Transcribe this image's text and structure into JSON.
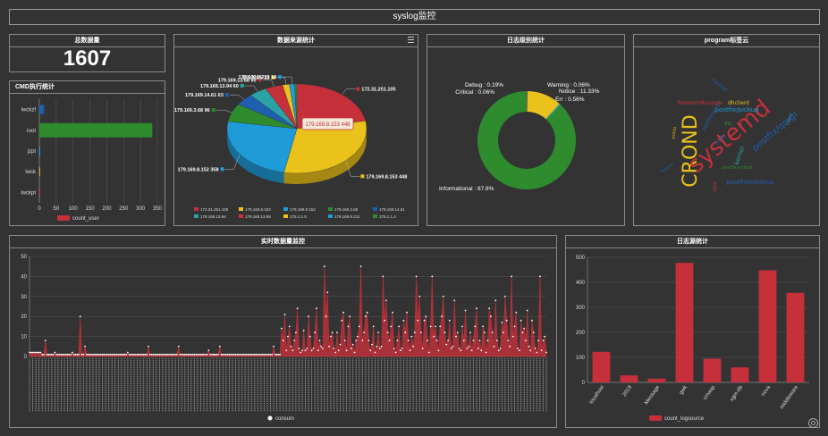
{
  "header": {
    "title": "syslog监控"
  },
  "total": {
    "title": "总数据量",
    "value": "1607"
  },
  "cmd": {
    "title": "CMD执行统计",
    "chart_data": {
      "type": "bar",
      "orientation": "horizontal",
      "categories": [
        "lwckzf",
        "root",
        "jzpt",
        "lwck",
        "lwckpt"
      ],
      "series": [
        {
          "name": "count_user",
          "values": [
            14,
            335,
            2,
            2,
            1
          ]
        }
      ],
      "xlim": [
        0,
        350
      ],
      "xticks": [
        "0",
        "50",
        "100",
        "150",
        "200",
        "250",
        "300",
        "350"
      ],
      "colors": [
        "#1f5fb0",
        "#2e8b2e",
        "#1f9cd8",
        "#d4a92a",
        "#c5303a"
      ],
      "legend_color": "#c5303a"
    }
  },
  "source": {
    "title": "数据来源统计",
    "chart_data": {
      "type": "pie",
      "slices": [
        {
          "name": "172.31.251.105",
          "value": 324,
          "color": "#c5303a",
          "label": "172.31.251.105"
        },
        {
          "name": "179.169.8.153",
          "value": 448,
          "color": "#eac21b",
          "label": "179.169.8.153 448"
        },
        {
          "name": "179.169.8.152",
          "value": 358,
          "color": "#1f9cd8",
          "label": "179.169.8.152 358"
        },
        {
          "name": "179.169.3.68",
          "value": 96,
          "color": "#2e8b2e",
          "label": "179.169.3.68 96"
        },
        {
          "name": "179.169.14.61",
          "value": 63,
          "color": "#1f5fb0",
          "label": "179.169.14.61 63"
        },
        {
          "name": "179.169.13.94",
          "value": 60,
          "color": "#2aa3a6",
          "label": "179.169.13.94 60"
        },
        {
          "name": "179.169.13.68",
          "value": 60,
          "color": "#c5303a",
          "label": "179.169.13.68 60"
        },
        {
          "name": "175.1.1.5",
          "value": 23,
          "color": "#eac21b",
          "label": "175.1.1.5 23"
        },
        {
          "name": "179.169.8.211",
          "value": 18,
          "color": "#1f9cd8",
          "label": "179.169.8.211 18"
        },
        {
          "name": "175.1.1.4",
          "value": 7,
          "color": "#2e8b2e",
          "label": ""
        }
      ],
      "tooltip": "179.169.8.153 448"
    }
  },
  "level": {
    "title": "日志级别统计",
    "chart_data": {
      "type": "pie",
      "donut": true,
      "slices": [
        {
          "name": "Debug",
          "value": 0.19,
          "color": "#c5303a",
          "label": "Debug : 0.19%"
        },
        {
          "name": "Critical",
          "value": 0.06,
          "color": "#1f5fb0",
          "label": "Critical : 0.06%"
        },
        {
          "name": "Warning",
          "value": 0.06,
          "color": "#1f9cd8",
          "label": "Warning : 0.06%"
        },
        {
          "name": "Notice",
          "value": 11.33,
          "color": "#eac21b",
          "label": "Notice : 11.33%"
        },
        {
          "name": "Err",
          "value": 0.56,
          "color": "#2aa3a6",
          "label": "Err : 0.56%"
        },
        {
          "name": "Informational",
          "value": 87.8,
          "color": "#2e8b2e",
          "label": "Informational : 87.8%"
        }
      ]
    }
  },
  "cloud": {
    "title": "program标签云",
    "words": [
      {
        "text": "CROND",
        "color": "#eac21b"
      },
      {
        "text": "systemd",
        "color": "#c5303a"
      },
      {
        "text": "postfix/qmgr",
        "color": "#1f5fb0"
      },
      {
        "text": "postfix/pickup",
        "color": "#1f9cd8"
      },
      {
        "text": "postfix/cleanup",
        "color": "#1f5fb0"
      },
      {
        "text": "dhclient",
        "color": "#eac21b"
      },
      {
        "text": "kernel",
        "color": "#2aa3a6"
      },
      {
        "text": "su",
        "color": "#2e8b2e"
      },
      {
        "text": "sudo",
        "color": "#1f5fb0"
      },
      {
        "text": "postfix/local",
        "color": "#1f5fb0"
      },
      {
        "text": "NetworkManager",
        "color": "#c5303a"
      },
      {
        "text": "postfix/smtpd",
        "color": "#2e8b2e"
      },
      {
        "text": "sshd",
        "color": "#c5303a"
      },
      {
        "text": "rsyslogd",
        "color": "#1f5fb0"
      },
      {
        "text": "crond",
        "color": "#2aa3a6"
      },
      {
        "text": "polkitd",
        "color": "#eac21b"
      },
      {
        "text": "sysinit",
        "color": "#1f5fb0"
      }
    ]
  },
  "realtime": {
    "title": "实时数据量监控",
    "chart_data": {
      "type": "area",
      "ylim": [
        0,
        50
      ],
      "yticks": [
        "0",
        "10",
        "20",
        "30",
        "40",
        "50"
      ],
      "series": [
        {
          "name": "consum",
          "values": [
            2,
            2,
            2,
            2,
            2,
            2,
            2,
            2,
            1,
            1,
            8,
            1,
            1,
            1,
            1,
            1,
            2,
            1,
            1,
            1,
            1,
            1,
            1,
            1,
            1,
            1,
            1,
            2,
            1,
            1,
            1,
            1,
            20,
            1,
            1,
            5,
            1,
            1,
            1,
            1,
            1,
            1,
            1,
            1,
            1,
            1,
            1,
            1,
            1,
            1,
            1,
            1,
            1,
            1,
            1,
            1,
            1,
            1,
            1,
            1,
            1,
            1,
            2,
            1,
            1,
            1,
            1,
            1,
            1,
            1,
            1,
            1,
            1,
            1,
            1,
            5,
            1,
            1,
            1,
            1,
            1,
            1,
            1,
            1,
            1,
            1,
            1,
            1,
            1,
            1,
            1,
            1,
            1,
            1,
            5,
            1,
            1,
            1,
            1,
            1,
            1,
            1,
            1,
            1,
            1,
            1,
            1,
            1,
            1,
            1,
            1,
            1,
            1,
            3,
            1,
            1,
            1,
            1,
            1,
            1,
            5,
            1,
            1,
            1,
            1,
            1,
            1,
            1,
            1,
            1,
            1,
            1,
            1,
            1,
            1,
            1,
            1,
            1,
            1,
            1,
            1,
            1,
            1,
            1,
            1,
            1,
            1,
            1,
            1,
            1,
            1,
            1,
            1,
            1,
            5,
            1,
            1,
            1,
            1,
            14,
            8,
            21,
            3,
            10,
            15,
            5,
            3,
            8,
            12,
            24,
            4,
            2,
            3,
            13,
            3,
            4,
            20,
            10,
            3,
            4,
            12,
            24,
            3,
            8,
            5,
            4,
            45,
            20,
            32,
            5,
            10,
            12,
            4,
            2,
            12,
            3,
            6,
            18,
            22,
            8,
            3,
            15,
            20,
            4,
            6,
            2,
            8,
            10,
            15,
            45,
            8,
            12,
            20,
            22,
            8,
            3,
            6,
            15,
            2,
            5,
            12,
            4,
            5,
            40,
            18,
            28,
            12,
            8,
            15,
            22,
            4,
            2,
            8,
            15,
            3,
            4,
            18,
            12,
            22,
            8,
            3,
            10,
            5,
            12,
            40,
            18,
            30,
            12,
            4,
            18,
            20,
            8,
            2,
            15,
            40,
            10,
            15,
            8,
            3,
            15,
            20,
            30,
            12,
            6,
            8,
            18,
            4,
            5,
            28,
            10,
            12,
            4,
            3,
            15,
            8,
            23,
            4,
            5,
            12,
            3,
            8,
            15,
            24,
            4,
            8,
            3,
            15,
            12,
            2,
            8,
            24,
            20,
            12,
            5,
            28,
            8,
            3,
            4,
            17,
            12,
            30,
            18,
            8,
            5,
            40,
            10,
            15,
            22,
            4,
            3,
            18,
            12,
            14,
            8,
            23,
            5,
            3,
            18,
            12,
            4,
            2,
            8,
            40,
            3,
            8,
            10,
            2
          ]
        }
      ],
      "legend": "consum",
      "color": "#c5303a"
    }
  },
  "logsource": {
    "title": "日志源统计",
    "chart_data": {
      "type": "bar",
      "categories": [
        "localhost",
        "2019",
        "Message",
        "gwk",
        "cmaap",
        "xgm-db",
        "nova",
        "middleware"
      ],
      "series": [
        {
          "name": "count_logsource",
          "values": [
            122,
            28,
            15,
            478,
            95,
            60,
            448,
            358
          ]
        }
      ],
      "ylim": [
        0,
        500
      ],
      "yticks": [
        "0",
        "100",
        "200",
        "300",
        "400",
        "500"
      ],
      "color": "#c5303a"
    }
  }
}
